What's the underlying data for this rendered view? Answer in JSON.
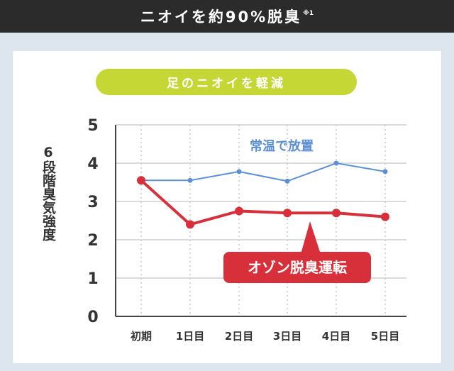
{
  "header": {
    "title": "ニオイを約90%脱臭",
    "note": "※1"
  },
  "chart_data": {
    "type": "line",
    "title": "足のニオイを軽減",
    "ylabel": "6段階臭気強度",
    "xlabel": "",
    "categories": [
      "初期",
      "1日目",
      "2日目",
      "3日目",
      "4日目",
      "5日目"
    ],
    "yticks": [
      "0",
      "1",
      "2",
      "3",
      "4",
      "5"
    ],
    "ylim": [
      0,
      5
    ],
    "grid": true,
    "series": [
      {
        "name": "常温で放置",
        "values": [
          3.55,
          3.55,
          3.78,
          3.53,
          4.0,
          3.78
        ],
        "color": "#5b8fd6"
      },
      {
        "name": "オゾン脱臭運転",
        "values": [
          3.55,
          2.4,
          2.75,
          2.7,
          2.7,
          2.6
        ],
        "color": "#d7303a"
      }
    ]
  }
}
